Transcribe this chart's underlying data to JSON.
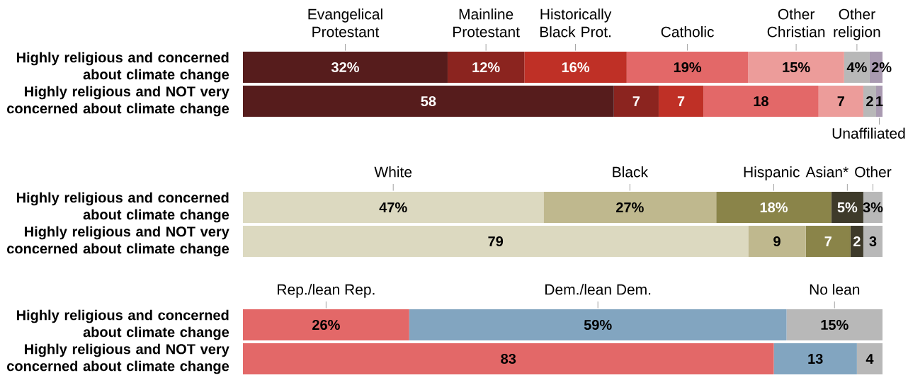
{
  "chart_data": [
    {
      "type": "bar",
      "orientation": "horizontal",
      "stacked": true,
      "categories": [
        "Highly religious and concerned about climate change",
        "Highly religious and NOT very concerned about climate change"
      ],
      "xlim": [
        0,
        100
      ],
      "tick_labels": "y",
      "series": [
        {
          "name": "Evangelical Protestant",
          "color": "#561c1c",
          "values": [
            32,
            58
          ],
          "value_labels": [
            "32%",
            "58"
          ]
        },
        {
          "name": "Mainline Protestant",
          "color": "#8b241f",
          "values": [
            12,
            7
          ],
          "value_labels": [
            "12%",
            "7"
          ]
        },
        {
          "name": "Historically Black Prot.",
          "color": "#bf3026",
          "values": [
            16,
            7
          ],
          "value_labels": [
            "16%",
            "7"
          ]
        },
        {
          "name": "Catholic",
          "color": "#e36868",
          "values": [
            19,
            18
          ],
          "value_labels": [
            "19%",
            "18"
          ]
        },
        {
          "name": "Other Christian",
          "color": "#ec9c9a",
          "values": [
            15,
            7
          ],
          "value_labels": [
            "15%",
            "7"
          ]
        },
        {
          "name": "Other religion",
          "color": "#b8b8b8",
          "values": [
            4,
            2
          ],
          "value_labels": [
            "4%",
            "2"
          ]
        },
        {
          "name": "Unaffiliated",
          "color": "#a99ab1",
          "values": [
            2,
            1
          ],
          "value_labels": [
            "2%",
            "1"
          ]
        }
      ]
    },
    {
      "type": "bar",
      "orientation": "horizontal",
      "stacked": true,
      "categories": [
        "Highly religious and concerned about climate change",
        "Highly religious and NOT very concerned about climate change"
      ],
      "xlim": [
        0,
        100
      ],
      "tick_labels": "y",
      "series": [
        {
          "name": "White",
          "color": "#dcd9c0",
          "values": [
            47,
            79
          ],
          "value_labels": [
            "47%",
            "79"
          ]
        },
        {
          "name": "Black",
          "color": "#bfb88e",
          "values": [
            27,
            9
          ],
          "value_labels": [
            "27%",
            "9"
          ]
        },
        {
          "name": "Hispanic",
          "color": "#8a8449",
          "values": [
            18,
            7
          ],
          "value_labels": [
            "18%",
            "7"
          ]
        },
        {
          "name": "Asian*",
          "color": "#3e3a2a",
          "values": [
            5,
            2
          ],
          "value_labels": [
            "5%",
            "2"
          ]
        },
        {
          "name": "Other",
          "color": "#b8b8b8",
          "values": [
            3,
            3
          ],
          "value_labels": [
            "3%",
            "3"
          ]
        }
      ]
    },
    {
      "type": "bar",
      "orientation": "horizontal",
      "stacked": true,
      "categories": [
        "Highly religious and concerned about climate change",
        "Highly religious and NOT very concerned about climate change"
      ],
      "xlim": [
        0,
        100
      ],
      "tick_labels": "y",
      "series": [
        {
          "name": "Rep./lean Rep.",
          "color": "#e36868",
          "values": [
            26,
            83
          ],
          "value_labels": [
            "26%",
            "83"
          ]
        },
        {
          "name": "Dem./lean Dem.",
          "color": "#82a5c0",
          "values": [
            59,
            13
          ],
          "value_labels": [
            "59%",
            "13"
          ]
        },
        {
          "name": "No lean",
          "color": "#b8b8b8",
          "values": [
            15,
            4
          ],
          "value_labels": [
            "15%",
            "4"
          ]
        }
      ]
    }
  ]
}
